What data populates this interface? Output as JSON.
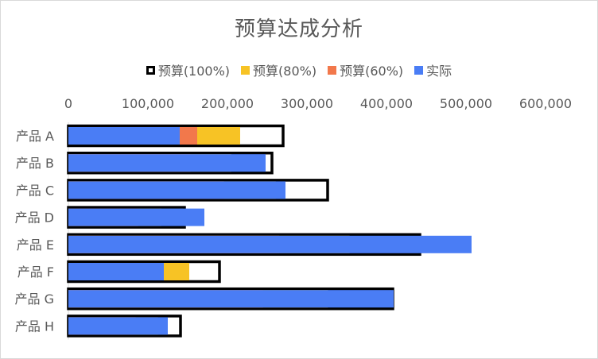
{
  "chart_data": {
    "type": "bar",
    "orientation": "horizontal",
    "title": "预算达成分析",
    "categories": [
      "产品 A",
      "产品 B",
      "产品 C",
      "产品 D",
      "产品 E",
      "产品 F",
      "产品 G",
      "产品 H"
    ],
    "series": [
      {
        "name": "预算(100%)",
        "values": [
          270000,
          256000,
          326000,
          146000,
          442000,
          190000,
          408000,
          141000
        ],
        "style": "outline",
        "color": "#000000"
      },
      {
        "name": "预算(80%)",
        "values": [
          216000,
          204800,
          260800,
          116800,
          353600,
          152000,
          326400,
          112800
        ],
        "color": "#F7C325"
      },
      {
        "name": "预算(60%)",
        "values": [
          162000,
          153600,
          195600,
          87600,
          265200,
          114000,
          244800,
          84600
        ],
        "color": "#F2784B"
      },
      {
        "name": "实际",
        "values": [
          140000,
          248000,
          273000,
          171000,
          507000,
          120000,
          409000,
          125000
        ],
        "color": "#4A7DF5"
      }
    ],
    "xlim": [
      0,
      600000
    ],
    "xticks": [
      "0",
      "100,000",
      "200,000",
      "300,000",
      "400,000",
      "500,000",
      "600,000"
    ],
    "xtick_values": [
      0,
      100000,
      200000,
      300000,
      400000,
      500000,
      600000
    ],
    "x_axis_position": "top",
    "legend_position": "top",
    "grid": false
  }
}
